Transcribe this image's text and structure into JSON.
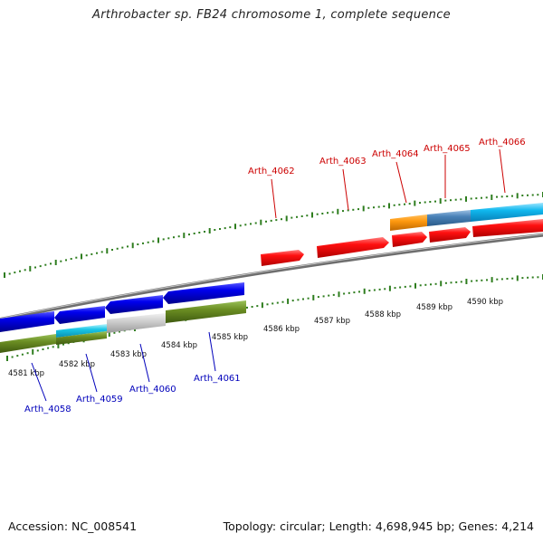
{
  "title": "Arthrobacter sp. FB24 chromosome 1, complete sequence",
  "footer": {
    "accession": "Accession: NC_008541",
    "summary": "Topology: circular; Length: 4,698,945 bp; Genes: 4,214"
  },
  "colors": {
    "forward_label": "#cc0000",
    "reverse_label": "#0000bb",
    "backbone": "#808080",
    "ticks": "#2e7d1e"
  },
  "kbp_ticks": [
    "4581 kbp",
    "4582 kbp",
    "4583 kbp",
    "4584 kbp",
    "4585 kbp",
    "4586 kbp",
    "4587 kbp",
    "4588 kbp",
    "4589 kbp",
    "4590 kbp"
  ],
  "gene_labels": {
    "forward": [
      "Arth_4062",
      "Arth_4063",
      "Arth_4064",
      "Arth_4065",
      "Arth_4066"
    ],
    "reverse": [
      "Arth_4058",
      "Arth_4059",
      "Arth_4060",
      "Arth_4061"
    ]
  }
}
